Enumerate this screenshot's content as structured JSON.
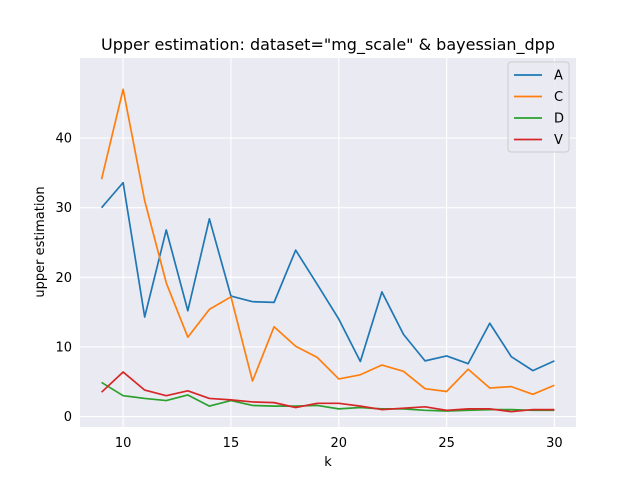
{
  "chart_data": {
    "type": "line",
    "title": "Upper estimation: dataset=\"mg_scale\" & bayessian_dpp",
    "xlabel": "k",
    "ylabel": "upper estimation",
    "xlim": [
      8,
      31
    ],
    "ylim": [
      -1.5,
      51.5
    ],
    "x_ticks": [
      10,
      15,
      20,
      25,
      30
    ],
    "y_ticks": [
      0,
      10,
      20,
      30,
      40
    ],
    "grid": true,
    "legend_position": "top-right",
    "x": [
      9,
      10,
      11,
      12,
      13,
      14,
      15,
      16,
      17,
      18,
      19,
      20,
      21,
      22,
      23,
      24,
      25,
      26,
      27,
      28,
      29,
      30
    ],
    "series": [
      {
        "name": "A",
        "color": "#1f77b4",
        "values": [
          30.0,
          33.6,
          14.3,
          26.8,
          15.2,
          28.4,
          17.3,
          16.5,
          16.4,
          23.9,
          19.0,
          14.0,
          7.9,
          17.9,
          11.8,
          8.0,
          8.7,
          7.6,
          13.4,
          8.6,
          6.6,
          8.0
        ]
      },
      {
        "name": "C",
        "color": "#ff7f0e",
        "values": [
          34.1,
          47.0,
          31.0,
          19.2,
          11.4,
          15.4,
          17.2,
          5.1,
          12.9,
          10.1,
          8.5,
          5.4,
          6.0,
          7.4,
          6.5,
          4.0,
          3.6,
          6.8,
          4.1,
          4.3,
          3.2,
          4.5
        ]
      },
      {
        "name": "D",
        "color": "#2ca02c",
        "values": [
          4.9,
          3.0,
          2.6,
          2.3,
          3.1,
          1.5,
          2.3,
          1.6,
          1.5,
          1.5,
          1.6,
          1.1,
          1.3,
          1.1,
          1.1,
          0.9,
          0.8,
          0.9,
          1.0,
          1.0,
          0.9,
          0.9
        ]
      },
      {
        "name": "V",
        "color": "#d62728",
        "values": [
          3.5,
          6.4,
          3.8,
          3.0,
          3.7,
          2.6,
          2.4,
          2.1,
          2.0,
          1.3,
          1.9,
          1.9,
          1.5,
          1.0,
          1.2,
          1.4,
          0.9,
          1.1,
          1.1,
          0.7,
          1.0,
          1.0
        ]
      }
    ]
  }
}
